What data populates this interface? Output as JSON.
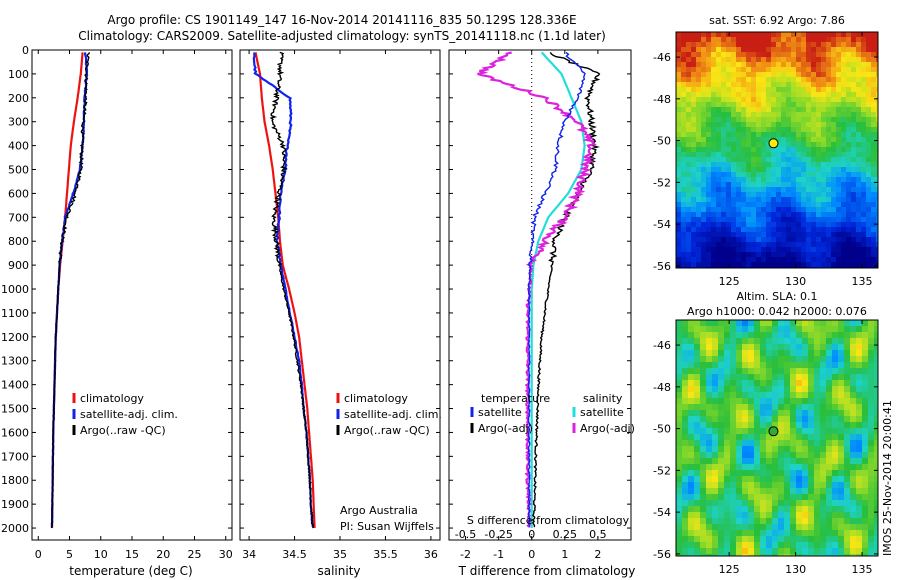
{
  "header": {
    "title_line1": "Argo profile: CS 1901149_147 16-Nov-2014 20141116_835 50.129S 128.336E",
    "title_line2": "Climatology: CARS2009. Satellite-adjusted climatology: synTS_20141118.nc (1.1d later)"
  },
  "footer": {
    "argo_australia": "Argo Australia",
    "pi": "PI: Susan Wijffels",
    "imos_stamp": "IMOS 25-Nov-2014 20:00:41"
  },
  "colors": {
    "climatology": "#ee1111",
    "satellite": "#1122ee",
    "argo": "#000000",
    "temp_diff": "#22dddd",
    "sal_diff": "#dd22dd"
  },
  "chart_data": [
    {
      "type": "line",
      "id": "temperature",
      "xlabel": "temperature (deg C)",
      "ylabel": "",
      "xlim": [
        -1,
        31
      ],
      "ylim": [
        0,
        2050
      ],
      "y_reversed": true,
      "xticks": [
        0,
        5,
        10,
        15,
        20,
        25,
        30
      ],
      "yticks": [
        0,
        100,
        200,
        300,
        400,
        500,
        600,
        700,
        800,
        900,
        1000,
        1100,
        1200,
        1300,
        1400,
        1500,
        1600,
        1700,
        1800,
        1900,
        2000
      ],
      "legend": [
        "climatology",
        "satellite-adj. clim.",
        "Argo(..raw -QC)"
      ],
      "series": [
        {
          "name": "climatology",
          "x": [
            7.1,
            6.8,
            6.3,
            5.7,
            5.2,
            4.9,
            4.6,
            4.3,
            3.9,
            3.5,
            3.2,
            3.0,
            2.8,
            2.7,
            2.6,
            2.5,
            2.4,
            2.35,
            2.3,
            2.25,
            2.2
          ],
          "y": [
            10,
            100,
            200,
            300,
            400,
            500,
            600,
            700,
            800,
            900,
            1000,
            1100,
            1200,
            1300,
            1400,
            1500,
            1600,
            1700,
            1800,
            1900,
            2000
          ]
        },
        {
          "name": "satellite-adj. clim.",
          "x": [
            7.5,
            7.8,
            7.4,
            7.3,
            7.1,
            6.7,
            5.6,
            4.3,
            3.8,
            3.4,
            3.2,
            3.0,
            2.8,
            2.7,
            2.6,
            2.5,
            2.4,
            2.35,
            2.3,
            2.25,
            2.2
          ],
          "y": [
            10,
            100,
            200,
            300,
            400,
            500,
            600,
            700,
            800,
            900,
            1000,
            1100,
            1200,
            1300,
            1400,
            1500,
            1600,
            1700,
            1800,
            1900,
            2000
          ]
        },
        {
          "name": "Argo(..raw -QC)",
          "x": [
            8.0,
            7.7,
            7.6,
            7.2,
            7.0,
            6.8,
            6.0,
            4.6,
            3.8,
            3.4,
            3.2,
            3.0,
            2.8,
            2.7,
            2.6,
            2.5,
            2.4,
            2.35,
            2.3,
            2.25,
            2.2
          ],
          "y": [
            10,
            100,
            200,
            300,
            400,
            500,
            600,
            700,
            800,
            900,
            1000,
            1100,
            1200,
            1300,
            1400,
            1500,
            1600,
            1700,
            1800,
            1900,
            2000
          ]
        }
      ]
    },
    {
      "type": "line",
      "id": "salinity",
      "xlabel": "salinity",
      "ylabel": "",
      "xlim": [
        33.9,
        36.1
      ],
      "ylim": [
        0,
        2050
      ],
      "y_reversed": true,
      "xticks": [
        34,
        34.5,
        35,
        35.5,
        36
      ],
      "legend": [
        "climatology",
        "satellite-adj. clim.",
        "Argo(..raw -QC)"
      ],
      "series": [
        {
          "name": "climatology",
          "x": [
            34.07,
            34.12,
            34.14,
            34.17,
            34.22,
            34.26,
            34.29,
            34.32,
            34.34,
            34.37,
            34.44,
            34.5,
            34.55,
            34.58,
            34.61,
            34.64,
            34.66,
            34.68,
            34.7,
            34.71,
            34.72
          ],
          "y": [
            10,
            100,
            200,
            300,
            400,
            500,
            600,
            700,
            800,
            900,
            1000,
            1100,
            1200,
            1300,
            1400,
            1500,
            1600,
            1700,
            1800,
            1900,
            2000
          ]
        },
        {
          "name": "satellite-adj. clim.",
          "x": [
            34.05,
            34.07,
            34.45,
            34.46,
            34.42,
            34.4,
            34.35,
            34.33,
            34.31,
            34.35,
            34.4,
            34.45,
            34.5,
            34.55,
            34.58,
            34.6,
            34.63,
            34.65,
            34.67,
            34.68,
            34.7
          ],
          "y": [
            10,
            100,
            200,
            300,
            400,
            500,
            600,
            700,
            800,
            900,
            1000,
            1100,
            1200,
            1300,
            1400,
            1500,
            1600,
            1700,
            1800,
            1900,
            2000
          ]
        },
        {
          "name": "Argo(..raw -QC)",
          "x": [
            34.35,
            34.34,
            34.3,
            34.25,
            34.38,
            34.38,
            34.33,
            34.27,
            34.3,
            34.33,
            34.38,
            34.44,
            34.49,
            34.53,
            34.57,
            34.6,
            34.63,
            34.65,
            34.67,
            34.68,
            34.7
          ],
          "y": [
            10,
            100,
            200,
            300,
            400,
            500,
            600,
            700,
            800,
            900,
            1000,
            1100,
            1200,
            1300,
            1400,
            1500,
            1600,
            1700,
            1800,
            1900,
            2000
          ]
        }
      ]
    },
    {
      "type": "line",
      "id": "difference",
      "xlabel": "T difference from climatology",
      "xlabel_top": "S difference from climatology",
      "xlim": [
        -2.5,
        3.0
      ],
      "ylim": [
        0,
        2050
      ],
      "y_reversed": true,
      "xticks": [
        -2,
        -1,
        0,
        1,
        2
      ],
      "xticks_s": [
        -0.5,
        -0.25,
        0,
        0.25,
        0.5
      ],
      "legend": {
        "temperature_header": "temperature",
        "salinity_header": "salinity",
        "items": [
          "satellite",
          "Argo(-adj)",
          "satellite",
          "Argo(-adj)"
        ]
      },
      "series": [
        {
          "name": "temperature satellite",
          "x": [
            0.3,
            0.9,
            1.2,
            1.5,
            1.6,
            1.5,
            1.1,
            0.5,
            0.2,
            0.05,
            0,
            0,
            0,
            0,
            0,
            0,
            0,
            0,
            0,
            0,
            0
          ],
          "y": [
            10,
            100,
            200,
            300,
            400,
            500,
            600,
            700,
            800,
            900,
            1000,
            1100,
            1200,
            1300,
            1400,
            1500,
            1600,
            1700,
            1800,
            1900,
            2000
          ]
        },
        {
          "name": "temperature Argo(-adj)",
          "x": [
            0.5,
            2.0,
            1.7,
            1.8,
            1.9,
            1.8,
            1.4,
            1.0,
            0.7,
            0.6,
            0.5,
            0.4,
            0.3,
            0.25,
            0.2,
            0.18,
            0.15,
            0.12,
            0.1,
            0.08,
            0.05
          ],
          "y": [
            10,
            100,
            200,
            300,
            400,
            500,
            600,
            700,
            800,
            900,
            1000,
            1100,
            1200,
            1300,
            1400,
            1500,
            1600,
            1700,
            1800,
            1900,
            2000
          ]
        },
        {
          "name": "salinity satellite",
          "x": [
            -0.15,
            -0.4,
            0.1,
            0.35,
            0.45,
            0.4,
            0.35,
            0.25,
            0.1,
            0.0,
            -0.02,
            -0.03,
            -0.03,
            -0.03,
            -0.03,
            -0.03,
            -0.03,
            -0.03,
            -0.03,
            -0.02,
            -0.02
          ],
          "y": [
            10,
            100,
            200,
            300,
            400,
            500,
            600,
            700,
            800,
            900,
            1000,
            1100,
            1200,
            1300,
            1400,
            1500,
            1600,
            1700,
            1800,
            1900,
            2000
          ]
        },
        {
          "name": "salinity Argo(-adj)",
          "x": [
            0.25,
            0.4,
            0.35,
            0.25,
            0.2,
            0.18,
            0.1,
            0.02,
            0.0,
            -0.01,
            -0.02,
            -0.02,
            -0.02,
            -0.02,
            -0.02,
            -0.02,
            -0.02,
            -0.02,
            -0.02,
            -0.02,
            -0.02
          ],
          "y": [
            10,
            100,
            200,
            300,
            400,
            500,
            600,
            700,
            800,
            900,
            1000,
            1100,
            1200,
            1300,
            1400,
            1500,
            1600,
            1700,
            1800,
            1900,
            2000
          ]
        }
      ]
    },
    {
      "type": "heatmap",
      "id": "sst_map",
      "title": "sat. SST: 6.92  Argo: 7.86",
      "xlim": [
        121,
        136.2
      ],
      "ylim": [
        -56.1,
        -44.8
      ],
      "xticks": [
        125,
        130,
        135
      ],
      "yticks": [
        -46,
        -48,
        -50,
        -52,
        -54,
        -56
      ],
      "marker": {
        "lon": 128.336,
        "lat": -50.129
      }
    },
    {
      "type": "heatmap",
      "id": "sla_map",
      "title": "Altim. SLA: 0.1",
      "subtitle": "Argo h1000: 0.042  h2000: 0.076",
      "xlim": [
        121,
        136.2
      ],
      "ylim": [
        -56.1,
        -44.8
      ],
      "xticks": [
        125,
        130,
        135
      ],
      "yticks": [
        -46,
        -48,
        -50,
        -52,
        -54,
        -56
      ],
      "marker": {
        "lon": 128.336,
        "lat": -50.129
      }
    }
  ]
}
